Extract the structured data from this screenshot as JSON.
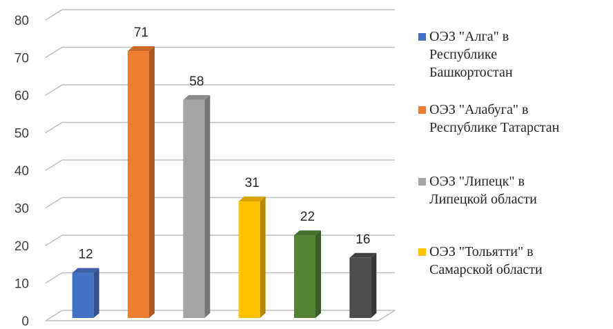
{
  "chart_data": {
    "type": "bar",
    "categories": [
      "ОЭЗ \"Алга\" в\nРеспублике\nБашкортостан",
      "ОЭЗ \"Алабуга\"  в\nРеспублике Татарстан",
      "ОЭЗ \"Липецк\"  в\nЛипецкой области",
      "ОЭЗ \"Тольятти\" в\nСамарской области",
      "",
      ""
    ],
    "values": [
      12,
      71,
      58,
      31,
      22,
      16
    ],
    "colors": [
      "#4472C4",
      "#ED7D31",
      "#A5A5A5",
      "#FFC000",
      "#548235",
      "#4D4D4D"
    ],
    "ylim": [
      0,
      80
    ],
    "yticks": [
      0,
      10,
      20,
      30,
      40,
      50,
      60,
      70,
      80
    ],
    "grid": true,
    "three_d": true,
    "legend_position": "right",
    "data_labels": [
      "12",
      "71",
      "58",
      "31",
      "22",
      "16"
    ],
    "title": "",
    "xlabel": "",
    "ylabel": ""
  },
  "legend": [
    {
      "label": "ОЭЗ \"Алга\" в\nРеспублике\nБашкортостан",
      "color": "#4472C4"
    },
    {
      "label": "ОЭЗ \"Алабуга\"  в\nРеспублике Татарстан",
      "color": "#ED7D31"
    },
    {
      "label": "ОЭЗ \"Липецк\"  в\nЛипецкой области",
      "color": "#A5A5A5"
    },
    {
      "label": "ОЭЗ \"Тольятти\" в\nСамарской области",
      "color": "#FFC000"
    }
  ]
}
